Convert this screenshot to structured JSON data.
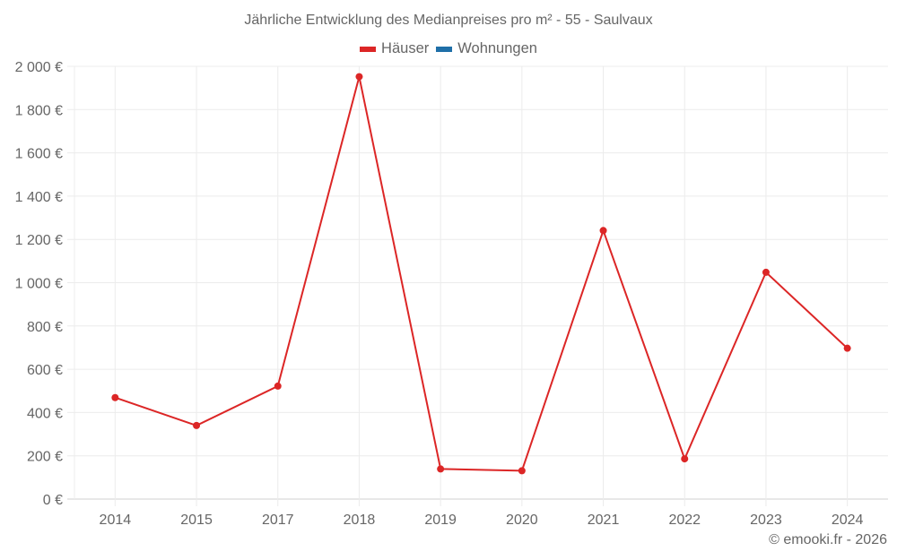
{
  "chart_data": {
    "type": "line",
    "title": "Jährliche Entwicklung des Medianpreises pro m² - 55 - Saulvaux",
    "xlabel": "",
    "ylabel": "",
    "categories": [
      "2014",
      "2015",
      "2017",
      "2018",
      "2019",
      "2020",
      "2021",
      "2022",
      "2023",
      "2024"
    ],
    "series": [
      {
        "name": "Häuser",
        "color": "#dc2626",
        "values": [
          469,
          340,
          522,
          1952,
          139,
          131,
          1241,
          186,
          1048,
          697
        ]
      },
      {
        "name": "Wohnungen",
        "color": "#1f6fa8",
        "values": []
      }
    ],
    "ylim": [
      0,
      2000
    ],
    "yticks": [
      0,
      200,
      400,
      600,
      800,
      1000,
      1200,
      1400,
      1600,
      1800,
      2000
    ],
    "ytick_labels": [
      "0 €",
      "200 €",
      "400 €",
      "600 €",
      "800 €",
      "1 000 €",
      "1 200 €",
      "1 400 €",
      "1 600 €",
      "1 800 €",
      "2 000 €"
    ],
    "grid": true,
    "legend_position": "top"
  },
  "legend": {
    "items": [
      {
        "label": "Häuser",
        "color": "#dc2626"
      },
      {
        "label": "Wohnungen",
        "color": "#1f6fa8"
      }
    ]
  },
  "credit": "© emooki.fr - 2026"
}
